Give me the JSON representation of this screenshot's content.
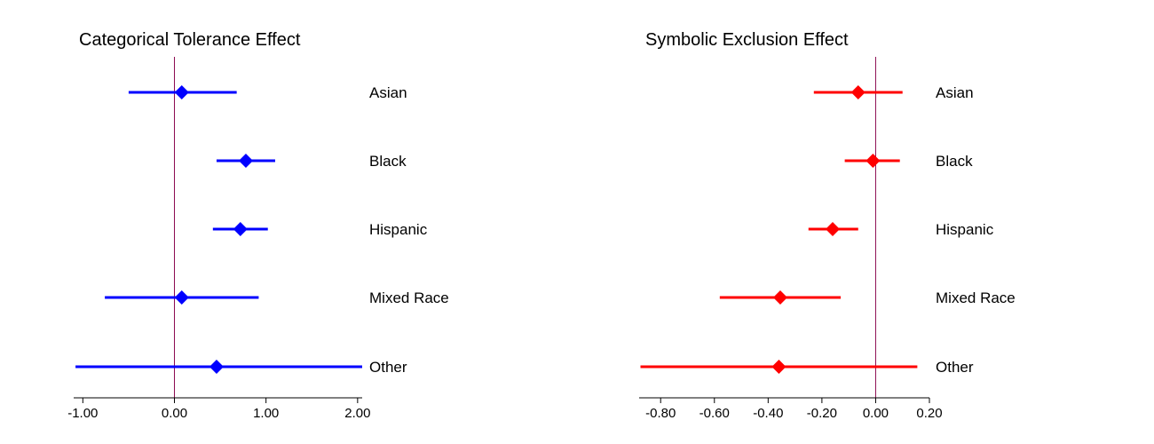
{
  "chart_data": [
    {
      "type": "scatter",
      "title": "Categorical Tolerance Effect",
      "color": "#0000ff",
      "reference_line_x": 0,
      "reference_line_color": "#8b0a50",
      "xlim": [
        -1.1,
        2.05
      ],
      "xticks": [
        -1.0,
        0.0,
        1.0,
        2.0
      ],
      "xtick_labels": [
        "-1.00",
        "0.00",
        "1.00",
        "2.00"
      ],
      "categories": [
        "Asian",
        "Black",
        "Hispanic",
        "Mixed Race",
        "Other"
      ],
      "estimates": [
        0.08,
        0.78,
        0.72,
        0.08,
        0.46
      ],
      "lower": [
        -0.5,
        0.46,
        0.42,
        -0.76,
        -1.08
      ],
      "upper": [
        0.68,
        1.1,
        1.02,
        0.92,
        2.05
      ],
      "grid": false
    },
    {
      "type": "scatter",
      "title": "Symbolic Exclusion Effect",
      "color": "#ff0000",
      "reference_line_x": 0,
      "reference_line_color": "#8b0a50",
      "xlim": [
        -0.88,
        0.2
      ],
      "xticks": [
        -0.8,
        -0.6,
        -0.4,
        -0.2,
        0.0,
        0.2
      ],
      "xtick_labels": [
        "-0.80",
        "-0.60",
        "-0.40",
        "-0.20",
        "0.00",
        "0.20"
      ],
      "categories": [
        "Asian",
        "Black",
        "Hispanic",
        "Mixed Race",
        "Other"
      ],
      "estimates": [
        -0.065,
        -0.01,
        -0.16,
        -0.355,
        -0.36
      ],
      "lower": [
        -0.23,
        -0.115,
        -0.25,
        -0.58,
        -0.875
      ],
      "upper": [
        0.1,
        0.09,
        -0.065,
        -0.13,
        0.155
      ],
      "grid": false
    }
  ]
}
